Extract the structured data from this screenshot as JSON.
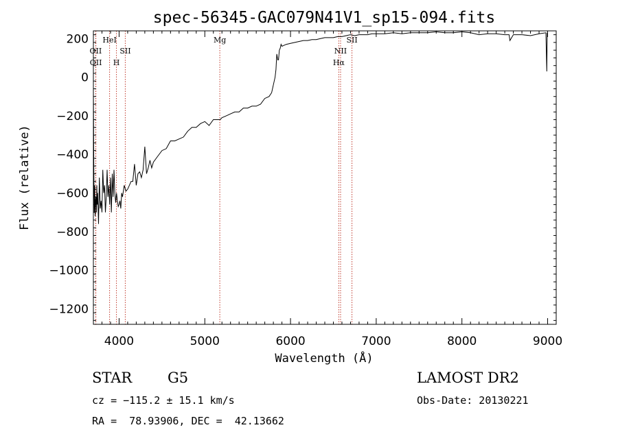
{
  "chart_data": {
    "type": "line",
    "title": "spec-56345-GAC079N41V1_sp15-094.fits",
    "xlabel": "Wavelength (Å)",
    "ylabel": "Flux (relative)",
    "xlim": [
      3700,
      9100
    ],
    "ylim": [
      -1280,
      240
    ],
    "x_ticks": [
      4000,
      5000,
      6000,
      7000,
      8000,
      9000
    ],
    "y_ticks": [
      -1200,
      -1000,
      -800,
      -600,
      -400,
      -200,
      0,
      200
    ],
    "grid": false,
    "series": [
      {
        "color": "#000000",
        "x": [
          3700,
          3705,
          3710,
          3715,
          3720,
          3725,
          3730,
          3735,
          3740,
          3745,
          3750,
          3760,
          3770,
          3780,
          3790,
          3800,
          3810,
          3820,
          3830,
          3840,
          3850,
          3860,
          3870,
          3880,
          3890,
          3900,
          3910,
          3920,
          3930,
          3940,
          3950,
          3960,
          3970,
          3980,
          3990,
          4000,
          4010,
          4020,
          4030,
          4040,
          4060,
          4080,
          4100,
          4120,
          4140,
          4160,
          4180,
          4200,
          4220,
          4240,
          4260,
          4280,
          4300,
          4320,
          4340,
          4360,
          4380,
          4400,
          4450,
          4500,
          4550,
          4600,
          4650,
          4700,
          4750,
          4800,
          4850,
          4900,
          4950,
          5000,
          5050,
          5100,
          5150,
          5180,
          5200,
          5250,
          5300,
          5350,
          5400,
          5450,
          5500,
          5550,
          5600,
          5650,
          5700,
          5750,
          5780,
          5800,
          5820,
          5830,
          5840,
          5850,
          5860,
          5870,
          5880,
          5890,
          5900,
          5950,
          6000,
          6050,
          6100,
          6150,
          6200,
          6250,
          6300,
          6350,
          6400,
          6450,
          6500,
          6550,
          6600,
          6650,
          6700,
          6750,
          6800,
          6850,
          6900,
          6950,
          7000,
          7100,
          7200,
          7300,
          7400,
          7500,
          7600,
          7700,
          7800,
          7900,
          8000,
          8100,
          8200,
          8300,
          8400,
          8500,
          8550,
          8560,
          8600,
          8700,
          8800,
          8900,
          8980,
          8990,
          8995,
          9000
        ],
        "values": [
          -60,
          -450,
          -700,
          -560,
          -720,
          -640,
          -620,
          -700,
          -560,
          -660,
          -600,
          -760,
          -520,
          -680,
          -640,
          -700,
          -480,
          -600,
          -560,
          -700,
          -620,
          -480,
          -620,
          -560,
          -660,
          -520,
          -700,
          -500,
          -620,
          -480,
          -600,
          -650,
          -600,
          -640,
          -670,
          -660,
          -640,
          -680,
          -600,
          -620,
          -560,
          -590,
          -580,
          -560,
          -540,
          -540,
          -450,
          -560,
          -500,
          -490,
          -520,
          -480,
          -360,
          -500,
          -470,
          -430,
          -470,
          -440,
          -410,
          -380,
          -370,
          -330,
          -330,
          -320,
          -310,
          -280,
          -260,
          -260,
          -240,
          -230,
          -250,
          -220,
          -220,
          -220,
          -210,
          -200,
          -190,
          -180,
          -180,
          -160,
          -160,
          -150,
          -150,
          -140,
          -110,
          -100,
          -80,
          -40,
          0,
          40,
          120,
          90,
          90,
          140,
          150,
          170,
          160,
          170,
          175,
          180,
          185,
          190,
          190,
          195,
          195,
          200,
          205,
          205,
          205,
          210,
          210,
          215,
          220,
          215,
          220,
          220,
          220,
          225,
          225,
          225,
          230,
          225,
          230,
          230,
          230,
          235,
          230,
          230,
          235,
          230,
          220,
          225,
          225,
          220,
          220,
          190,
          220,
          220,
          215,
          225,
          230,
          30,
          230,
          210
        ]
      }
    ],
    "line_markers": [
      {
        "label": "OII",
        "x": 3727,
        "row": 1
      },
      {
        "label": "OII",
        "x": 3729,
        "row": 2
      },
      {
        "label": "HeI",
        "x": 3889,
        "row": 0
      },
      {
        "label": "H",
        "x": 3969,
        "row": 2
      },
      {
        "label": "SII",
        "x": 4072,
        "row": 1
      },
      {
        "label": "Mg",
        "x": 5175,
        "row": 0
      },
      {
        "label": "NII",
        "x": 6584,
        "row": 1
      },
      {
        "label": "Hα",
        "x": 6563,
        "row": 2
      },
      {
        "label": "SII",
        "x": 6717,
        "row": 0
      }
    ]
  },
  "info": {
    "object_type": "STAR",
    "subclass": "G5",
    "survey": "LAMOST DR2",
    "cz": "cz = −115.2 ± 15.1 km/s",
    "obs_date": "Obs-Date: 20130221",
    "coords": "RA =  78.93906, DEC =  42.13662"
  }
}
